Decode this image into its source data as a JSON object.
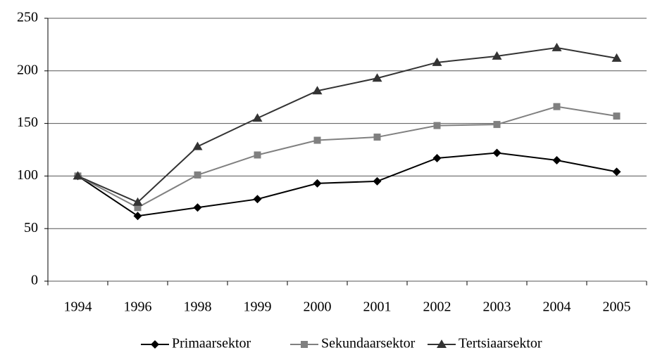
{
  "chart_data": {
    "type": "line",
    "categories": [
      "1994",
      "1996",
      "1998",
      "1999",
      "2000",
      "2001",
      "2002",
      "2003",
      "2004",
      "2005"
    ],
    "series": [
      {
        "name": "Primaarsektor",
        "color": "#000000",
        "marker": "diamond",
        "values": [
          100,
          62,
          70,
          78,
          93,
          95,
          117,
          122,
          115,
          104
        ]
      },
      {
        "name": "Sekundaarsektor",
        "color": "#808080",
        "marker": "square",
        "values": [
          100,
          70,
          101,
          120,
          134,
          137,
          148,
          149,
          166,
          157
        ]
      },
      {
        "name": "Tertsiaarsektor",
        "color": "#333333",
        "marker": "triangle",
        "values": [
          100,
          75,
          128,
          155,
          181,
          193,
          208,
          214,
          222,
          212
        ]
      }
    ],
    "ylim": [
      0,
      250
    ],
    "yticks": [
      0,
      50,
      100,
      150,
      200,
      250
    ],
    "grid": true,
    "legend": "bottom"
  }
}
